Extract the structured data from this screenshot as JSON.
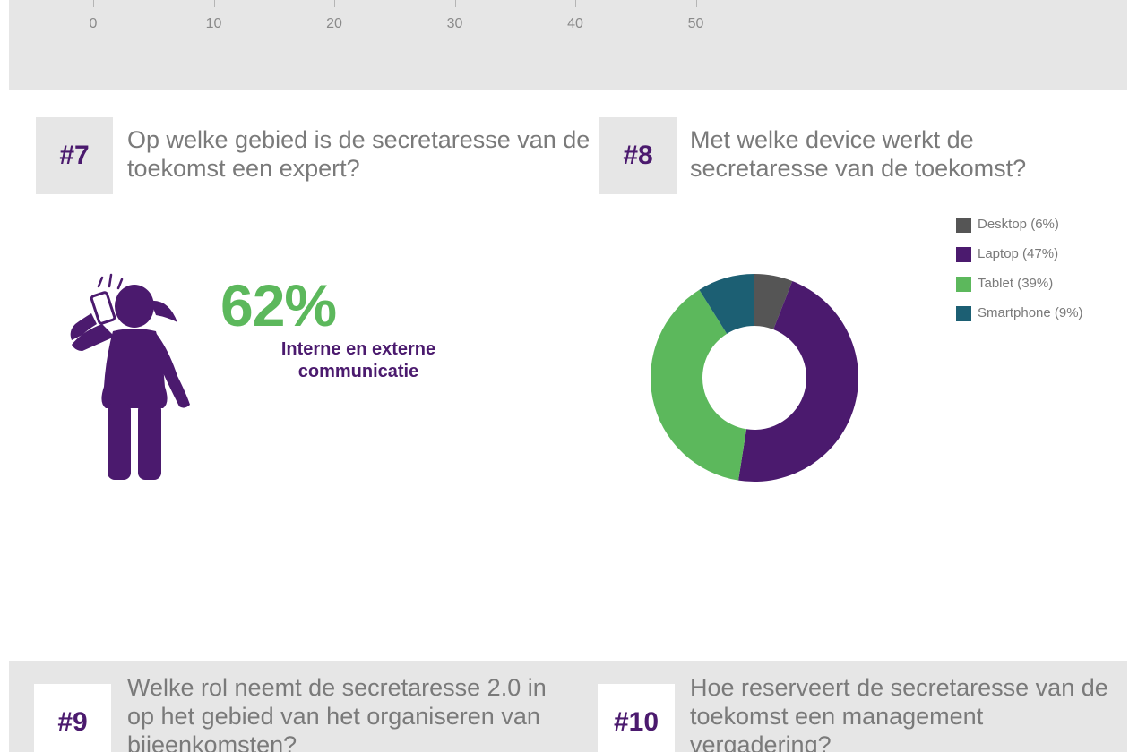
{
  "top_axis": {
    "ticks": [
      "0",
      "10",
      "20",
      "30",
      "40",
      "50"
    ]
  },
  "sections": {
    "q7": {
      "number": "#7",
      "question": "Op welke gebied is de secretaresse van de toekomst een expert?",
      "stat_value": "62%",
      "stat_caption": "Interne en externe communicatie",
      "icon": "woman-phone-icon",
      "color_value": "#5cb85c",
      "color_caption": "#4b1a6e"
    },
    "q8": {
      "number": "#8",
      "question": "Met welke device werkt de secretaresse van de toekomst?"
    },
    "q9": {
      "number": "#9",
      "question": "Welke rol neemt de secretaresse 2.0 in op het gebied van het organiseren van bijeenkomsten?"
    },
    "q10": {
      "number": "#10",
      "question": "Hoe reserveert de secretaresse van de toekomst een management vergadering?"
    }
  },
  "chart_data": [
    {
      "type": "bar",
      "note_visible": "axis only",
      "x_ticks": [
        0,
        10,
        20,
        30,
        40,
        50
      ],
      "xlim": [
        0,
        50
      ]
    },
    {
      "type": "pie",
      "donut": true,
      "categories": [
        "Desktop",
        "Laptop",
        "Tablet",
        "Smartphone"
      ],
      "values": [
        6,
        47,
        39,
        9
      ],
      "legend_labels": [
        "Desktop (6%)",
        "Laptop (47%)",
        "Tablet (39%)",
        "Smartphone (9%)"
      ],
      "colors": [
        "#555555",
        "#4b1a6e",
        "#5cb85c",
        "#1c5f73"
      ],
      "legend_position": "top-right"
    }
  ],
  "colors": {
    "purple": "#4b1a6e",
    "green": "#5cb85c",
    "grey_band": "#e6e6e6"
  }
}
